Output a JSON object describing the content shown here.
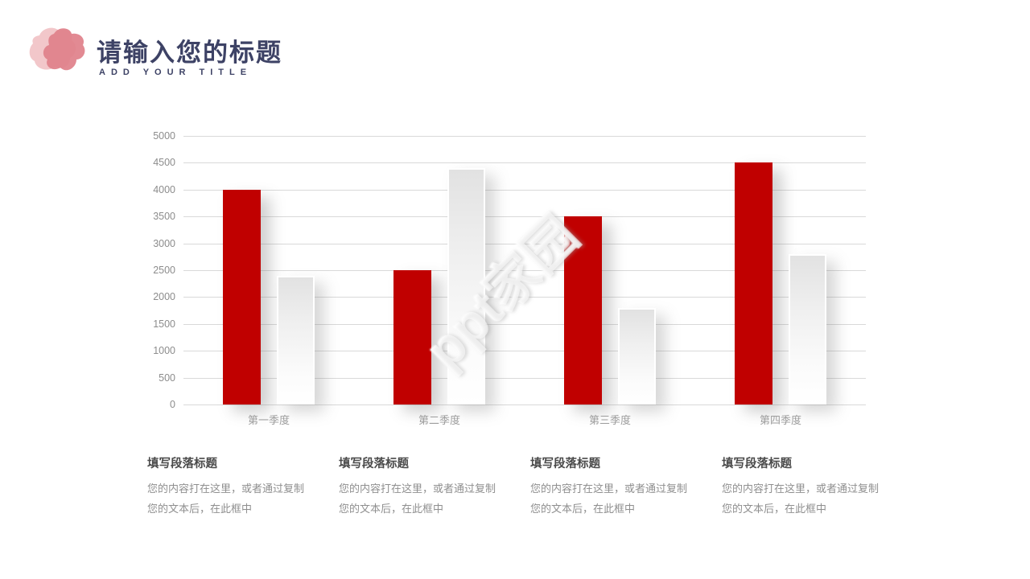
{
  "header": {
    "title": "请输入您的标题",
    "subtitle": "ADD YOUR TITLE",
    "title_color": "#3D4265",
    "logo_colors": {
      "back_blob": "#F2C7CA",
      "front_blob": "#E0808A"
    }
  },
  "watermark": "ppt家园",
  "chart_data": {
    "type": "bar",
    "categories": [
      "第一季度",
      "第二季度",
      "第三季度",
      "第四季度"
    ],
    "series": [
      {
        "color": "#C00000",
        "values": [
          4000,
          2500,
          3500,
          4500
        ]
      },
      {
        "color": "#E8E8E8",
        "values": [
          2400,
          4400,
          1800,
          2800
        ]
      }
    ],
    "title": "",
    "xlabel": "",
    "ylabel": "",
    "ylim": [
      0,
      5000
    ],
    "ystep": 500,
    "grid": true,
    "legend": false,
    "gridline_color": "#D9D9D9",
    "tick_label_color": "#8C8C8C"
  },
  "sections": {
    "items": [
      {
        "title": "填写段落标题",
        "body": "您的内容打在这里，或者通过复制您的文本后，在此框中"
      },
      {
        "title": "填写段落标题",
        "body": "您的内容打在这里，或者通过复制您的文本后，在此框中"
      },
      {
        "title": "填写段落标题",
        "body": "您的内容打在这里，或者通过复制您的文本后，在此框中"
      },
      {
        "title": "填写段落标题",
        "body": "您的内容打在这里，或者通过复制您的文本后，在此框中"
      }
    ]
  }
}
